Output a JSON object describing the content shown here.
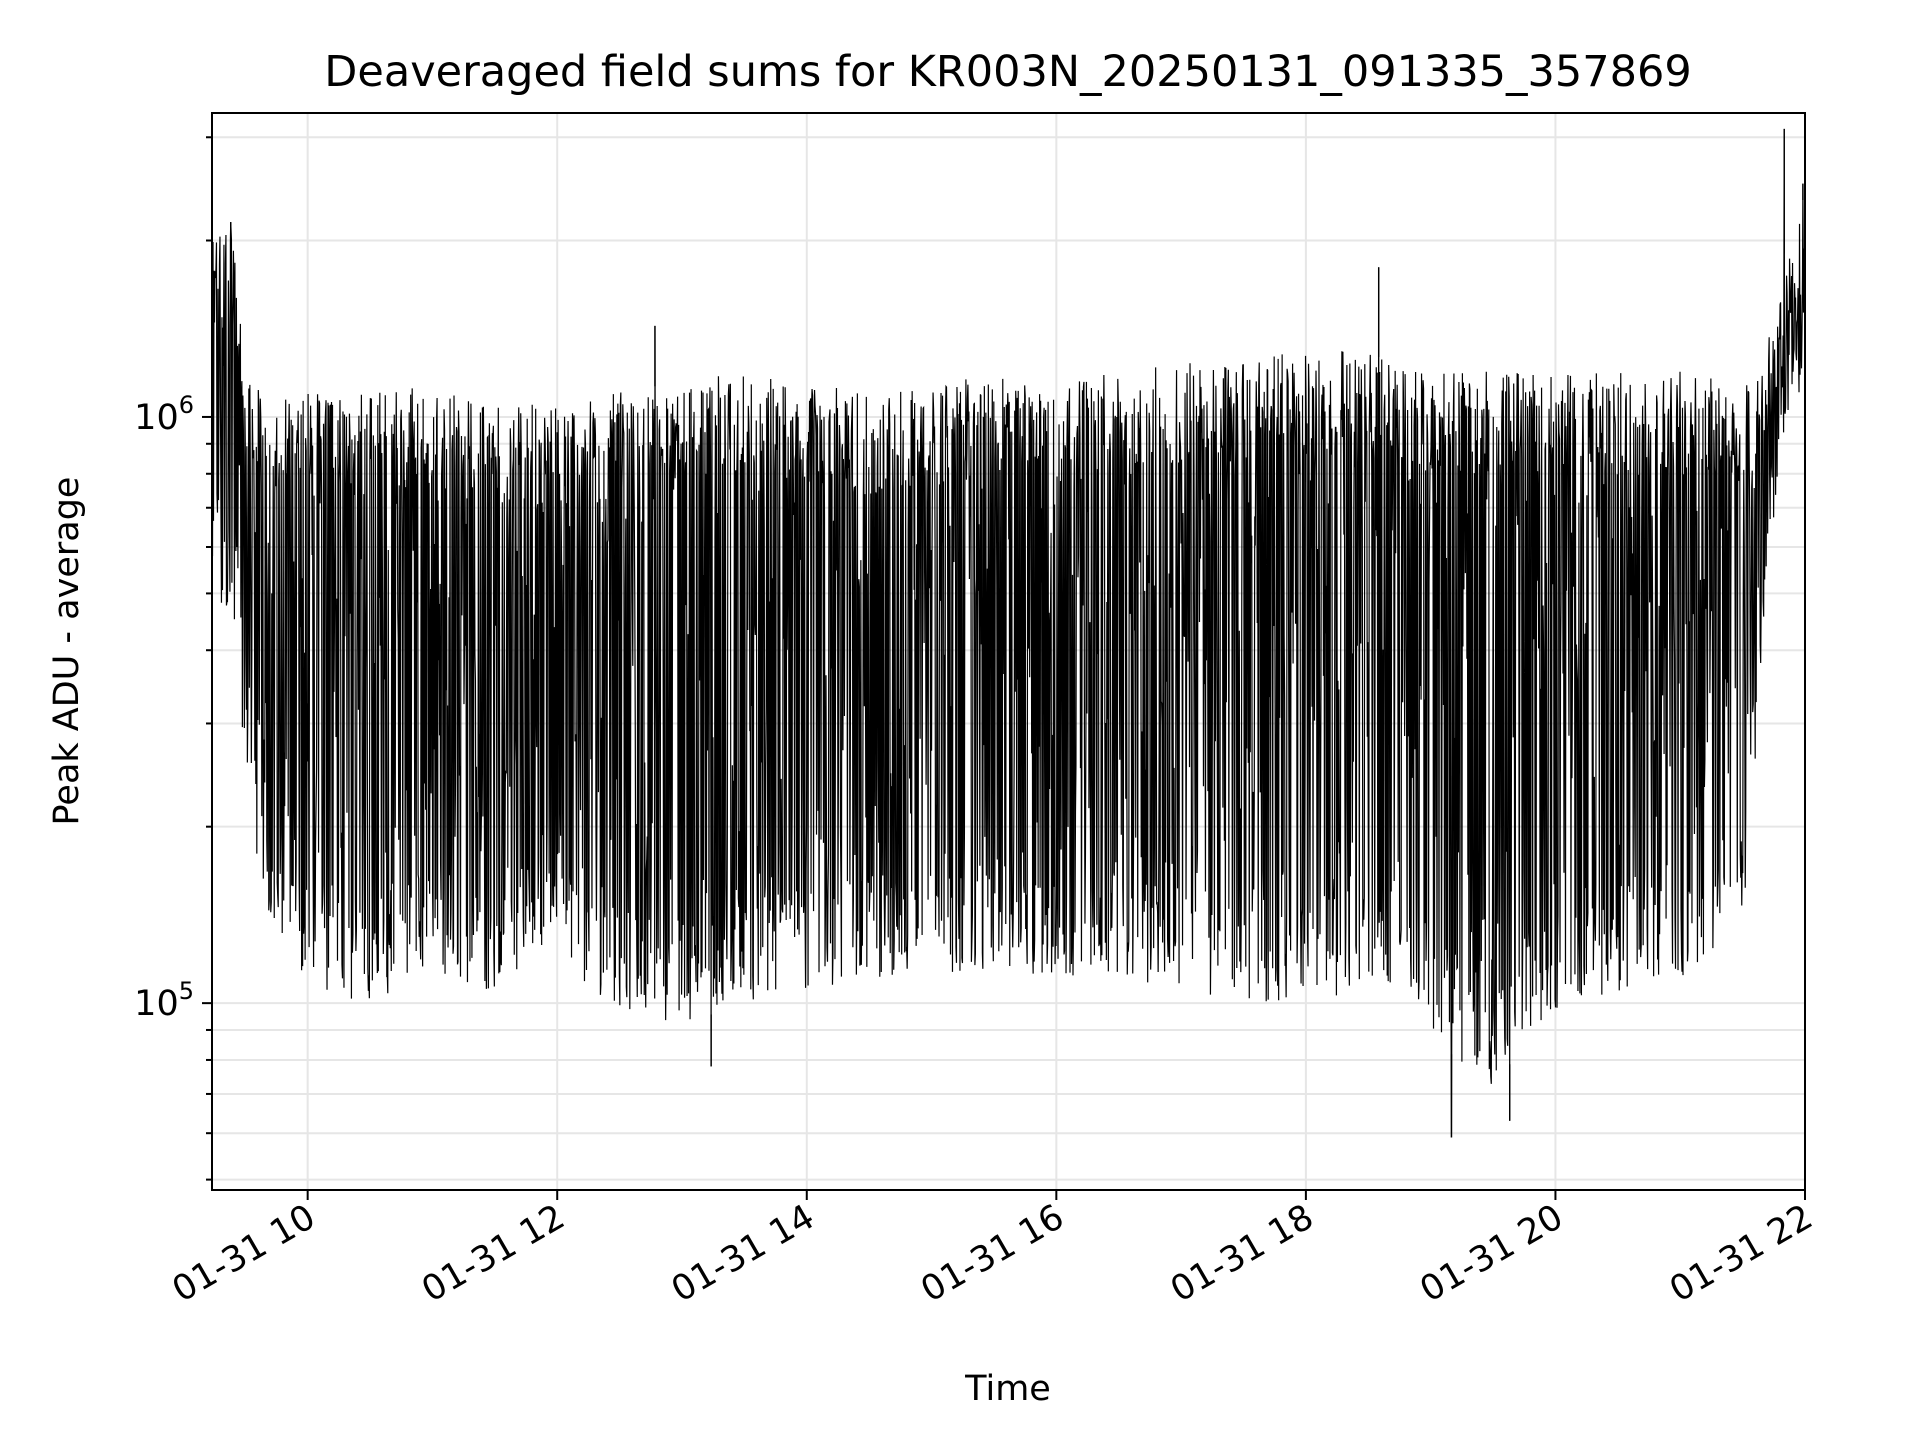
{
  "chart_data": {
    "type": "line",
    "title": "Deaveraged field sums for KR003N_20250131_091335_357869",
    "xlabel": "Time",
    "ylabel": "Peak ADU - average",
    "x_start": "01-31 09:14",
    "x_end": "01-31 22:00",
    "xlim": [
      "01-31 09:14",
      "01-31 22:00"
    ],
    "ylim": [
      48000,
      3300000
    ],
    "y_scale": "log",
    "grid": true,
    "line_color": "#000000",
    "x_ticks": [
      "01-31 10",
      "01-31 12",
      "01-31 14",
      "01-31 16",
      "01-31 18",
      "01-31 20",
      "01-31 22"
    ],
    "x_tick_rotation": 30,
    "y_ticks": [
      {
        "value": 100000,
        "base": "10",
        "exp": "5"
      },
      {
        "value": 1000000,
        "base": "10",
        "exp": "6"
      }
    ],
    "envelope": [
      {
        "t": "09:14",
        "upper": 2100000,
        "lower": 500000
      },
      {
        "t": "09:25",
        "upper": 2100000,
        "lower": 450000
      },
      {
        "t": "09:30",
        "upper": 1150000,
        "lower": 250000
      },
      {
        "t": "09:40",
        "upper": 1100000,
        "lower": 120000
      },
      {
        "t": "10:00",
        "upper": 1100000,
        "lower": 105000
      },
      {
        "t": "10:30",
        "upper": 1100000,
        "lower": 100000
      },
      {
        "t": "11:00",
        "upper": 1150000,
        "lower": 110000
      },
      {
        "t": "11:30",
        "upper": 1050000,
        "lower": 105000
      },
      {
        "t": "12:00",
        "upper": 1050000,
        "lower": 120000
      },
      {
        "t": "12:30",
        "upper": 1100000,
        "lower": 95000
      },
      {
        "t": "13:00",
        "upper": 1150000,
        "lower": 92000
      },
      {
        "t": "13:30",
        "upper": 1200000,
        "lower": 100000
      },
      {
        "t": "14:00",
        "upper": 1150000,
        "lower": 105000
      },
      {
        "t": "14:30",
        "upper": 1100000,
        "lower": 110000
      },
      {
        "t": "15:00",
        "upper": 1150000,
        "lower": 110000
      },
      {
        "t": "15:30",
        "upper": 1200000,
        "lower": 115000
      },
      {
        "t": "16:00",
        "upper": 1150000,
        "lower": 110000
      },
      {
        "t": "16:30",
        "upper": 1200000,
        "lower": 110000
      },
      {
        "t": "17:00",
        "upper": 1250000,
        "lower": 105000
      },
      {
        "t": "17:30",
        "upper": 1250000,
        "lower": 100000
      },
      {
        "t": "18:00",
        "upper": 1300000,
        "lower": 100000
      },
      {
        "t": "18:30",
        "upper": 1300000,
        "lower": 105000
      },
      {
        "t": "18:45",
        "upper": 1200000,
        "lower": 110000
      },
      {
        "t": "19:00",
        "upper": 1200000,
        "lower": 90000
      },
      {
        "t": "19:15",
        "upper": 1200000,
        "lower": 78000
      },
      {
        "t": "19:30",
        "upper": 1200000,
        "lower": 72000
      },
      {
        "t": "19:45",
        "upper": 1200000,
        "lower": 85000
      },
      {
        "t": "20:00",
        "upper": 1200000,
        "lower": 95000
      },
      {
        "t": "20:30",
        "upper": 1200000,
        "lower": 105000
      },
      {
        "t": "21:00",
        "upper": 1200000,
        "lower": 110000
      },
      {
        "t": "21:30",
        "upper": 1150000,
        "lower": 130000
      },
      {
        "t": "21:40",
        "upper": 1300000,
        "lower": 400000
      },
      {
        "t": "21:50",
        "upper": 1900000,
        "lower": 950000
      },
      {
        "t": "22:00",
        "upper": 2400000,
        "lower": 1000000
      }
    ],
    "spikes": [
      {
        "t": "09:23",
        "value": 2150000
      },
      {
        "t": "12:47",
        "value": 1430000
      },
      {
        "t": "13:14",
        "value": 78000
      },
      {
        "t": "18:35",
        "value": 1800000
      },
      {
        "t": "19:10",
        "value": 59000
      },
      {
        "t": "19:38",
        "value": 63000
      },
      {
        "t": "21:50",
        "value": 3100000
      },
      {
        "t": "21:59",
        "value": 2500000
      }
    ]
  }
}
